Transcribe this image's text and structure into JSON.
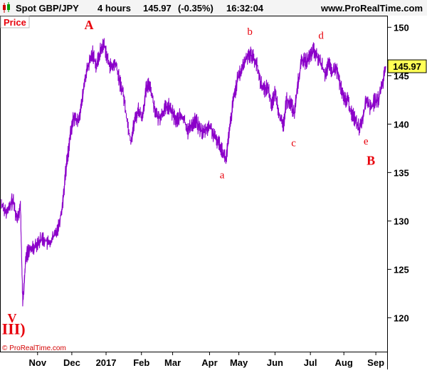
{
  "header": {
    "symbol": "Spot GBP/JPY",
    "timeframe": "4 hours",
    "last": "145.97",
    "change": "(-0.35%)",
    "time": "16:32:04",
    "site": "www.ProRealTime.com"
  },
  "price_tag": "Price",
  "copyright": "© ProRealTime.com",
  "current_price_label": "145.97",
  "chart_data": {
    "type": "line",
    "series": [
      {
        "color": "#8b00c9",
        "values": [
          [
            0,
            131.8
          ],
          [
            1.5,
            130.8
          ],
          [
            3,
            132.2
          ],
          [
            4,
            130.3
          ],
          [
            5,
            131.5
          ],
          [
            5.6,
            121.5
          ],
          [
            6.5,
            126.5
          ],
          [
            8,
            127.2
          ],
          [
            9.5,
            127.8
          ],
          [
            11,
            128.2
          ],
          [
            12.5,
            127.6
          ],
          [
            14,
            128.5
          ],
          [
            15,
            129.5
          ],
          [
            16,
            131.5
          ],
          [
            17,
            135.5
          ],
          [
            18,
            138.5
          ],
          [
            19,
            140.8
          ],
          [
            20,
            140.2
          ],
          [
            21,
            141.8
          ],
          [
            22,
            144.8
          ],
          [
            23,
            146.2
          ],
          [
            24,
            147.3
          ],
          [
            25,
            146.0
          ],
          [
            26,
            147.5
          ],
          [
            27,
            148.3
          ],
          [
            28,
            146.5
          ],
          [
            29,
            145.8
          ],
          [
            30,
            146.3
          ],
          [
            31,
            144.5
          ],
          [
            32,
            143.2
          ],
          [
            33,
            140.5
          ],
          [
            34,
            138.2
          ],
          [
            35,
            140.3
          ],
          [
            36,
            141.5
          ],
          [
            37,
            140.6
          ],
          [
            38,
            143.5
          ],
          [
            39,
            144.2
          ],
          [
            40,
            142.1
          ],
          [
            41,
            140.6
          ],
          [
            42,
            140.9
          ],
          [
            43,
            141.6
          ],
          [
            44,
            141.8
          ],
          [
            45,
            141.1
          ],
          [
            46,
            140.3
          ],
          [
            47,
            140.8
          ],
          [
            48,
            140.5
          ],
          [
            49,
            139.3
          ],
          [
            50,
            139.9
          ],
          [
            51,
            140.4
          ],
          [
            52,
            139.6
          ],
          [
            53,
            139.1
          ],
          [
            54,
            139.6
          ],
          [
            55,
            139.7
          ],
          [
            56,
            138.6
          ],
          [
            57,
            138.2
          ],
          [
            58,
            137.4
          ],
          [
            59,
            136.2
          ],
          [
            60,
            139.5
          ],
          [
            61,
            142.6
          ],
          [
            62,
            144.5
          ],
          [
            63,
            145.5
          ],
          [
            64,
            146.5
          ],
          [
            65,
            147.3
          ],
          [
            66,
            147.0
          ],
          [
            67,
            146.3
          ],
          [
            68,
            144.5
          ],
          [
            69,
            143.5
          ],
          [
            70,
            143.9
          ],
          [
            71,
            142.1
          ],
          [
            72,
            143.2
          ],
          [
            73,
            141.1
          ],
          [
            74,
            139.6
          ],
          [
            75,
            142.5
          ],
          [
            76,
            142.2
          ],
          [
            77,
            141.1
          ],
          [
            78,
            144.4
          ],
          [
            79,
            146.7
          ],
          [
            80,
            146.4
          ],
          [
            81,
            146.9
          ],
          [
            82,
            147.6
          ],
          [
            83,
            146.9
          ],
          [
            84,
            146.3
          ],
          [
            85,
            145.2
          ],
          [
            86,
            146.1
          ],
          [
            87,
            145.3
          ],
          [
            88,
            145.8
          ],
          [
            89,
            144.1
          ],
          [
            90,
            142.5
          ],
          [
            91,
            142.6
          ],
          [
            92,
            141.0
          ],
          [
            93,
            140.6
          ],
          [
            94,
            139.6
          ],
          [
            95,
            140.8
          ],
          [
            96,
            142.6
          ],
          [
            97,
            141.6
          ],
          [
            98,
            142.3
          ],
          [
            99,
            142.5
          ],
          [
            100,
            143.8
          ],
          [
            101,
            145.97
          ]
        ]
      }
    ],
    "x_ticks": [
      {
        "label": "Nov",
        "at": 9.5
      },
      {
        "label": "Dec",
        "at": 18.5
      },
      {
        "label": "2017",
        "at": 27.5
      },
      {
        "label": "Feb",
        "at": 36.8
      },
      {
        "label": "Mar",
        "at": 45.0
      },
      {
        "label": "Apr",
        "at": 54.7
      },
      {
        "label": "May",
        "at": 62.4
      },
      {
        "label": "Jun",
        "at": 71.9
      },
      {
        "label": "Jul",
        "at": 81.2
      },
      {
        "label": "Aug",
        "at": 90.0
      },
      {
        "label": "Sep",
        "at": 98.4
      }
    ],
    "xlim": [
      0,
      101
    ],
    "y_ticks": [
      120,
      125,
      130,
      135,
      140,
      145,
      150
    ],
    "ylim": [
      116.5,
      151.2
    ],
    "grid": false,
    "annotations": [
      {
        "label": "A",
        "x": 23.0,
        "y": 149.8,
        "style": "major"
      },
      {
        "label": "a",
        "x": 58.0,
        "y": 134.4,
        "style": "minor"
      },
      {
        "label": "b",
        "x": 65.3,
        "y": 149.2,
        "style": "minor"
      },
      {
        "label": "c",
        "x": 76.8,
        "y": 137.7,
        "style": "minor"
      },
      {
        "label": "d",
        "x": 84.0,
        "y": 148.8,
        "style": "minor"
      },
      {
        "label": "e",
        "x": 95.8,
        "y": 137.9,
        "style": "minor"
      },
      {
        "label": "B",
        "x": 97.1,
        "y": 135.8,
        "style": "major"
      },
      {
        "label": "V",
        "x": 2.8,
        "y": 119.5,
        "style": "major"
      },
      {
        "label": "III)",
        "x": 3.2,
        "y": 118.3,
        "style": "major-large"
      }
    ]
  }
}
